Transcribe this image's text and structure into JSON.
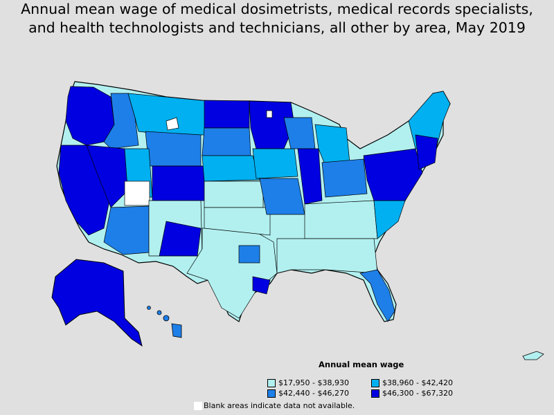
{
  "title_line1": "Annual mean wage of medical dosimetrists, medical records specialists,",
  "title_line2": "and health technologists and technicians, all other by area, May 2019",
  "legend": {
    "title": "Annual mean wage",
    "items": [
      {
        "label": "$17,950 - $38,930",
        "color": "#b2f0f0"
      },
      {
        "label": "$38,960 - $42,420",
        "color": "#00b0f0"
      },
      {
        "label": "$42,440 - $46,270",
        "color": "#1e7fe8"
      },
      {
        "label": "$46,300 - $67,320",
        "color": "#0000e0"
      }
    ]
  },
  "note": "Blank areas indicate data not available.",
  "colors": {
    "background": "#e0e0e0",
    "blank": "#ffffff",
    "border": "#000000"
  }
}
